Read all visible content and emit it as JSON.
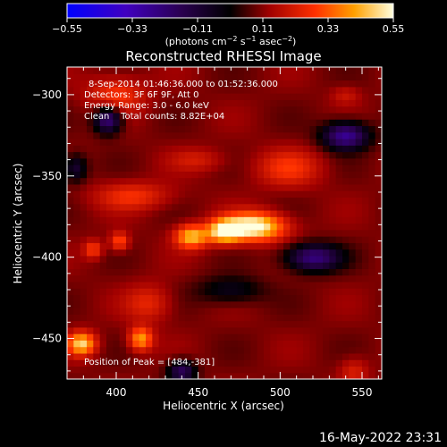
{
  "chart_data": {
    "type": "heatmap",
    "title": "Reconstructed RHESSI Image",
    "xlabel": "Heliocentric X (arcsec)",
    "ylabel": "Heliocentric Y (arcsec)",
    "xlim": [
      370,
      562
    ],
    "ylim": [
      -475,
      -283
    ],
    "x_ticks": [
      400,
      450,
      500,
      550
    ],
    "y_ticks": [
      -300,
      -350,
      -400,
      -450
    ],
    "colorbar": {
      "ticks": [
        "-0.55",
        "-0.33",
        "-0.11",
        "0.11",
        "0.33",
        "0.55"
      ],
      "range": [
        -0.55,
        0.55
      ],
      "unit_label": "(photons cm^-2 s^-1 asec^-2)"
    },
    "annotations": [
      "8-Sep-2014 01:46:36.000 to 01:52:36.000",
      "Detectors: 3F 6F 9F, Att 0",
      "Energy Range: 3.0 - 6.0 keV",
      "Clean    Total counts: 8.82E+04"
    ],
    "peak_label": "Position of Peak = [484,-381]",
    "sources": [
      {
        "x": 484,
        "y": -381,
        "sx": 13,
        "sy": 6,
        "value": 0.55
      },
      {
        "x": 466,
        "y": -384,
        "sx": 7,
        "sy": 5,
        "value": 0.46
      },
      {
        "x": 446,
        "y": -387,
        "sx": 7,
        "sy": 5,
        "value": 0.42
      },
      {
        "x": 415,
        "y": -450,
        "sx": 5,
        "sy": 5,
        "value": 0.38
      },
      {
        "x": 379,
        "y": -453,
        "sx": 6,
        "sy": 5,
        "value": 0.45
      },
      {
        "x": 402,
        "y": -390,
        "sx": 4,
        "sy": 4,
        "value": 0.28
      },
      {
        "x": 386,
        "y": -395,
        "sx": 4,
        "sy": 4,
        "value": 0.25
      },
      {
        "x": 400,
        "y": -300,
        "sx": 12,
        "sy": 8,
        "value": 0.24
      },
      {
        "x": 505,
        "y": -345,
        "sx": 14,
        "sy": 8,
        "value": 0.22
      },
      {
        "x": 410,
        "y": -362,
        "sx": 16,
        "sy": 6,
        "value": 0.22
      },
      {
        "x": 450,
        "y": -340,
        "sx": 12,
        "sy": 5,
        "value": 0.16
      },
      {
        "x": 545,
        "y": -470,
        "sx": 6,
        "sy": 6,
        "value": 0.18
      },
      {
        "x": 420,
        "y": -428,
        "sx": 10,
        "sy": 8,
        "value": 0.2
      },
      {
        "x": 540,
        "y": -300,
        "sx": 6,
        "sy": 4,
        "value": 0.15
      },
      {
        "x": 395,
        "y": -315,
        "sx": 6,
        "sy": 6,
        "value": -0.3
      },
      {
        "x": 540,
        "y": -325,
        "sx": 10,
        "sy": 6,
        "value": -0.32
      },
      {
        "x": 520,
        "y": -400,
        "sx": 12,
        "sy": 6,
        "value": -0.28
      },
      {
        "x": 440,
        "y": -470,
        "sx": 6,
        "sy": 5,
        "value": -0.22
      },
      {
        "x": 375,
        "y": -345,
        "sx": 5,
        "sy": 6,
        "value": -0.15
      },
      {
        "x": 470,
        "y": -420,
        "sx": 14,
        "sy": 6,
        "value": -0.1
      }
    ]
  },
  "timestamp": "16-May-2022 23:31",
  "colors": {
    "background": "#000000",
    "text": "#ffffff"
  }
}
